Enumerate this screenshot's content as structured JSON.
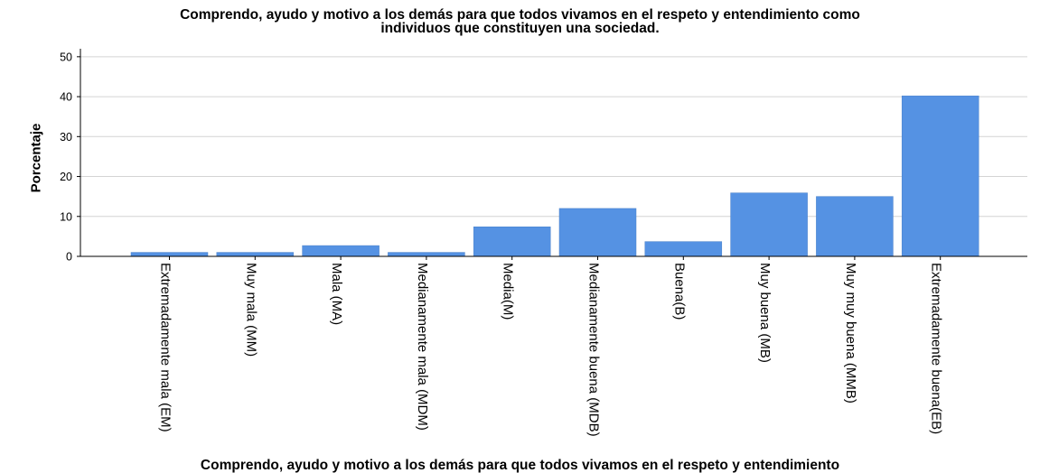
{
  "chart_data": {
    "type": "bar",
    "title": "Comprendo, ayudo y motivo a los demás para que todos vivamos en el respeto y entendimiento como individuos que constituyen una sociedad.",
    "title_lines": [
      "Comprendo, ayudo y motivo a los demás para que todos vivamos en el respeto y entendimiento como",
      "individuos que constituyen una sociedad."
    ],
    "ylabel": "Porcentaje",
    "xlabel": "Comprendo, ayudo y motivo a los demás para que todos vivamos en el respeto y entendimiento",
    "categories": [
      "Extremadamente mala (EM)",
      "Muy mala (MM)",
      "Mala (MA)",
      "Medianamente mala (MDM)",
      "Media(M)",
      "Medianamente buena (MDB)",
      "Buena(B)",
      "Muy buena (MB)",
      "Muy muy buena (MMB)",
      "Extremadamente buena(EB)"
    ],
    "values": [
      1,
      1,
      2.7,
      1,
      7.4,
      12,
      3.7,
      15.9,
      15,
      40.2
    ],
    "ylim": [
      0,
      52
    ],
    "yticks": [
      0,
      10,
      20,
      30,
      40,
      50
    ],
    "grid": true,
    "bar_color": "#5592e3"
  }
}
